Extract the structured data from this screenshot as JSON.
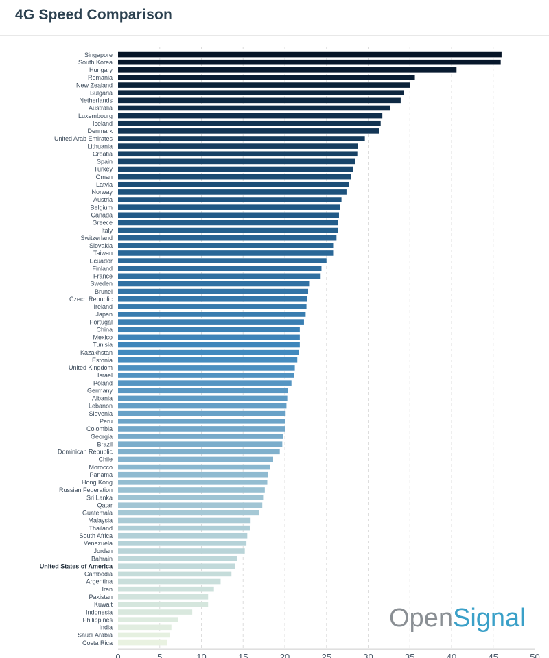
{
  "header": {
    "title": "4G Speed Comparison"
  },
  "brand": {
    "part1": "Open",
    "part2": "Signal"
  },
  "chart_data": {
    "type": "bar",
    "orientation": "horizontal",
    "title": "4G Speed Comparison",
    "xlabel": "",
    "ylabel": "",
    "xlim": [
      0,
      50
    ],
    "xticks": [
      0,
      5,
      10,
      15,
      20,
      25,
      30,
      35,
      40,
      45,
      50
    ],
    "grid": "vertical-dashed",
    "highlight": "United States of America",
    "color_scale": [
      "#061426",
      "#1f5682",
      "#3f87bd",
      "#9cc2d3",
      "#e9f2e1"
    ],
    "categories": [
      "Singapore",
      "South Korea",
      "Hungary",
      "Romania",
      "New Zealand",
      "Bulgaria",
      "Netherlands",
      "Australia",
      "Luxembourg",
      "Iceland",
      "Denmark",
      "United Arab Emirates",
      "Lithuania",
      "Croatia",
      "Spain",
      "Turkey",
      "Oman",
      "Latvia",
      "Norway",
      "Austria",
      "Belgium",
      "Canada",
      "Greece",
      "Italy",
      "Switzerland",
      "Slovakia",
      "Taiwan",
      "Ecuador",
      "Finland",
      "France",
      "Sweden",
      "Brunei",
      "Czech Republic",
      "Ireland",
      "Japan",
      "Portugal",
      "China",
      "Mexico",
      "Tunisia",
      "Kazakhstan",
      "Estonia",
      "United Kingdom",
      "Israel",
      "Poland",
      "Germany",
      "Albania",
      "Lebanon",
      "Slovenia",
      "Peru",
      "Colombia",
      "Georgia",
      "Brazil",
      "Dominican Republic",
      "Chile",
      "Morocco",
      "Panama",
      "Hong Kong",
      "Russian Federation",
      "Sri Lanka",
      "Qatar",
      "Guatemala",
      "Malaysia",
      "Thailand",
      "South Africa",
      "Venezuela",
      "Jordan",
      "Bahrain",
      "United States of America",
      "Cambodia",
      "Argentina",
      "Iran",
      "Pakistan",
      "Kuwait",
      "Indonesia",
      "Philippines",
      "India",
      "Saudi Arabia",
      "Costa Rica"
    ],
    "values": [
      46.0,
      45.9,
      40.6,
      35.6,
      35.0,
      34.3,
      33.9,
      32.6,
      31.7,
      31.5,
      31.3,
      29.6,
      28.8,
      28.7,
      28.4,
      28.2,
      27.9,
      27.7,
      27.4,
      26.8,
      26.6,
      26.5,
      26.4,
      26.4,
      26.2,
      25.8,
      25.8,
      25.0,
      24.4,
      24.3,
      23.0,
      22.8,
      22.7,
      22.6,
      22.5,
      22.3,
      21.8,
      21.8,
      21.8,
      21.7,
      21.5,
      21.2,
      21.1,
      20.8,
      20.4,
      20.3,
      20.2,
      20.1,
      20.0,
      20.0,
      19.8,
      19.7,
      19.4,
      18.6,
      18.2,
      18.0,
      17.9,
      17.6,
      17.4,
      17.3,
      16.9,
      15.9,
      15.8,
      15.5,
      15.4,
      15.2,
      14.3,
      14.0,
      13.6,
      12.3,
      11.5,
      10.8,
      10.8,
      8.9,
      7.2,
      6.4,
      6.2,
      5.9
    ]
  }
}
